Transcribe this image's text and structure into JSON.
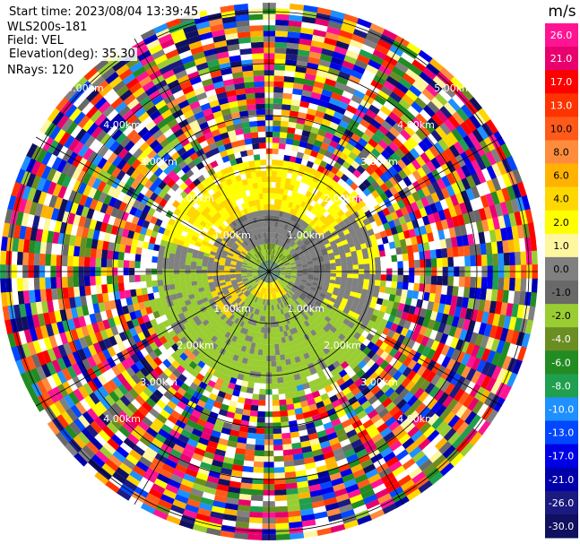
{
  "header": {
    "start_time": "Start time: 2023/08/04 13:39:45",
    "instrument": "WLS200s-181",
    "field": "Field: VEL",
    "elevation": "Elevation(deg): 35.30",
    "nrays": "NRays: 120"
  },
  "colorbar": {
    "unit": "m/s",
    "ticks": [
      "26.0",
      "21.0",
      "17.0",
      "13.0",
      "10.0",
      "8.0",
      "6.0",
      "4.0",
      "2.0",
      "1.0",
      "0.0",
      "-1.0",
      "-2.0",
      "-4.0",
      "-6.0",
      "-8.0",
      "-10.0",
      "-13.0",
      "-17.0",
      "-21.0",
      "-26.0",
      "-30.0"
    ],
    "colors": [
      "#ff1493",
      "#e8006e",
      "#ff0000",
      "#ff3300",
      "#ff5a1a",
      "#ff8c3c",
      "#ffb300",
      "#ffd700",
      "#ffff00",
      "#fff6a0",
      "#808080",
      "#696969",
      "#9acd32",
      "#6b8e23",
      "#228b22",
      "#1f9f4f",
      "#1e90ff",
      "#0047ff",
      "#0000e6",
      "#0000aa",
      "#1a1a80",
      "#101060"
    ]
  },
  "chart_data": {
    "type": "heatmap",
    "title": "",
    "field": "VEL",
    "units": "m/s",
    "elevation_deg": 35.3,
    "n_rays": 120,
    "range_rings_km": [
      "1.00km",
      "2.00km",
      "3.00km",
      "4.00km",
      "5.00km"
    ],
    "azimuth_spokes_deg": [
      0,
      30,
      60,
      90,
      120,
      150,
      180,
      210,
      240,
      270,
      300,
      330
    ],
    "color_scale_min": -30.0,
    "color_scale_max": 26.0,
    "pattern": {
      "north_sector_near": "2.0 to 4.0 m/s (yellow)",
      "south_sector_near": "-2.0 to -4.0 m/s (green)",
      "ring_band_near": "0.0 to -1.0 m/s (gray)",
      "far_range": "noise, full color range"
    }
  },
  "ring_labels": [
    {
      "text": "1.00km"
    },
    {
      "text": "1.00km"
    },
    {
      "text": "1.00km"
    },
    {
      "text": "1.00km"
    },
    {
      "text": "2.00km"
    },
    {
      "text": "2.00km"
    },
    {
      "text": "2.00km"
    },
    {
      "text": "2.00km"
    },
    {
      "text": "3.00km"
    },
    {
      "text": "3.00km"
    },
    {
      "text": "3.00km"
    },
    {
      "text": "3.00km"
    },
    {
      "text": "4.00km"
    },
    {
      "text": "4.00km"
    },
    {
      "text": "4.00km"
    },
    {
      "text": "4.00km"
    },
    {
      "text": "5.00km"
    },
    {
      "text": "5.00km"
    }
  ]
}
